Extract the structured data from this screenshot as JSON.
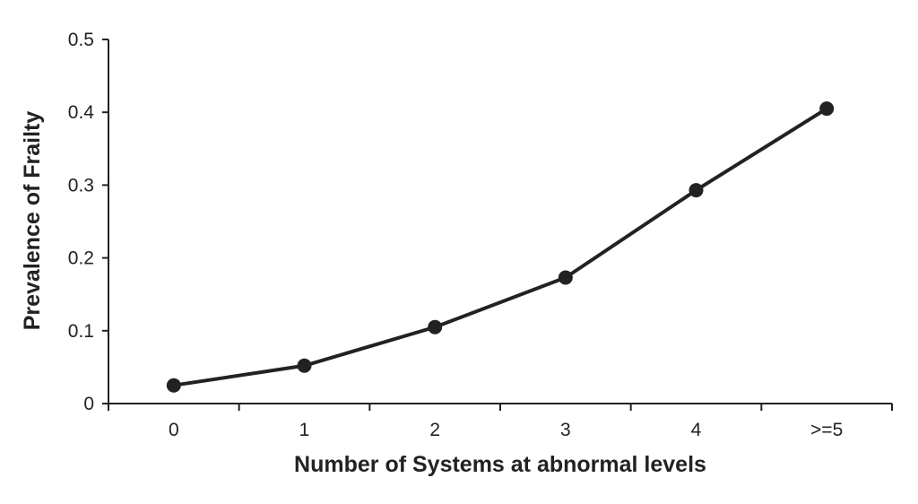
{
  "chart_data": {
    "type": "line",
    "title": "",
    "xlabel": "Number of Systems at abnormal levels",
    "ylabel": "Prevalence of Frailty",
    "categories": [
      "0",
      "1",
      "2",
      "3",
      "4",
      ">=5"
    ],
    "series": [
      {
        "values": [
          0.025,
          0.052,
          0.105,
          0.173,
          0.293,
          0.405
        ]
      }
    ],
    "ylim": [
      0,
      0.5
    ],
    "yticks": [
      "0",
      "0.1",
      "0.2",
      "0.3",
      "0.4",
      "0.5"
    ],
    "grid": false,
    "legend": "none",
    "colors": {
      "line": "#222222",
      "marker": "#222222",
      "axis": "#222222"
    }
  }
}
